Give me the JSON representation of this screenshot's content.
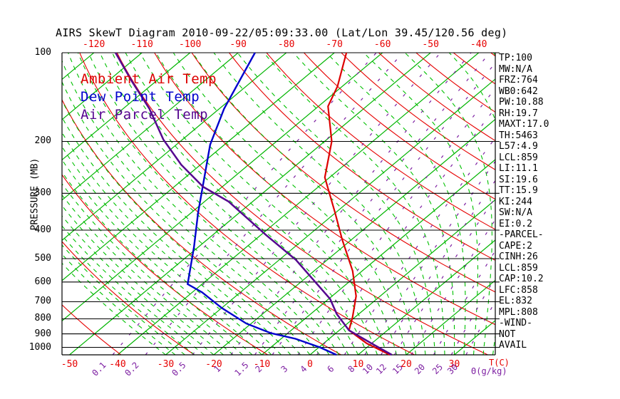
{
  "title": "AIRS SkewT Diagram 2010-09-22/05:09:33.00 (Lat/Lon 39.45/120.56 deg)",
  "colors": {
    "isotherm_green": "#00b400",
    "dry_adiabat_red": "#e60000",
    "moist_adiabat_green": "#00c000",
    "mixing_ratio_purple": "#7d1fa2",
    "axis_black": "#000000",
    "temp_curve_red": "#dd0000",
    "dewpoint_curve_blue": "#0000cc",
    "parcel_curve_purple": "#55068f",
    "tick_label_red": "#e60000"
  },
  "legend": {
    "items": [
      {
        "label": "Ambient Air Temp",
        "color": "#dd0000"
      },
      {
        "label": "Dew Point Temp",
        "color": "#0000cc"
      },
      {
        "label": "Air Parcel Temp",
        "color": "#55068f"
      }
    ]
  },
  "axes": {
    "pressure": {
      "label": "PRESSURE (MB)",
      "unit": "MB",
      "scale": "log",
      "ticks": [
        100,
        200,
        300,
        400,
        500,
        600,
        700,
        800,
        900,
        1000
      ]
    },
    "temp_ticks_top": [
      -120,
      -110,
      -100,
      -90,
      -80,
      -70,
      -60,
      -50,
      -40
    ],
    "temp_ticks_bottom": [
      -50,
      -40,
      -30,
      -20,
      -10,
      0,
      10,
      20,
      30
    ],
    "temp_unit": "T(C)",
    "mixing_ratio_ticks": [
      0.1,
      0.2,
      0.5,
      1,
      1.5,
      2,
      3,
      4,
      6,
      8,
      10,
      12,
      15,
      20,
      25,
      30
    ],
    "mixing_unit": "Θ(g/kg)"
  },
  "side_panel": {
    "lines": [
      "TP:100",
      "MW:N/A",
      "FRZ:764",
      "WB0:642",
      "PW:10.88",
      "RH:19.7",
      "MAXT:17.0",
      "TH:5463",
      "L57:4.9",
      "LCL:859",
      "LI:11.1",
      "SI:19.6",
      "TT:15.9",
      "KI:244",
      "SW:N/A",
      "EI:0.2",
      "-PARCEL-",
      "CAPE:2",
      "CINH:26",
      "LCL:859",
      "CAP:10.2",
      "LFC:858",
      "EL:832",
      "MPL:808",
      "-WIND-",
      "NOT",
      "AVAIL"
    ]
  },
  "chart_data": {
    "type": "line",
    "title": "AIRS SkewT Diagram 2010-09-22/05:09:33.00 (Lat/Lon 39.45/120.56 deg)",
    "x_axis": {
      "label": "T(C)",
      "skewed": true,
      "ticks_top": [
        -120,
        -110,
        -100,
        -90,
        -80,
        -70,
        -60,
        -50,
        -40
      ],
      "ticks_bottom": [
        -50,
        -40,
        -30,
        -20,
        -10,
        0,
        10,
        20,
        30
      ]
    },
    "y_axis": {
      "label": "PRESSURE (MB)",
      "scale": "log",
      "range": [
        100,
        1060
      ],
      "ticks": [
        100,
        200,
        300,
        400,
        500,
        600,
        700,
        800,
        900,
        1000
      ]
    },
    "background": {
      "isotherms_C": {
        "from": -130,
        "to": 40,
        "step": 10
      },
      "dry_adiabats_theta_K": {
        "from": 230,
        "to": 470,
        "step": 15
      },
      "moist_adiabats_startC": {
        "from": -30,
        "to": 40,
        "step": 2
      },
      "mixing_ratio_lines_gkg": [
        0.1,
        0.2,
        0.5,
        1,
        1.5,
        2,
        3,
        4,
        6,
        8,
        10,
        12,
        15,
        20,
        25,
        30
      ]
    },
    "series": [
      {
        "name": "Ambient Air Temp",
        "color": "#dd0000",
        "width": 2.2,
        "points_p_T": [
          [
            100,
            -67.5
          ],
          [
            130,
            -61
          ],
          [
            152,
            -58
          ],
          [
            200,
            -48.5
          ],
          [
            265,
            -41
          ],
          [
            350,
            -30
          ],
          [
            430,
            -22
          ],
          [
            550,
            -12
          ],
          [
            670,
            -5
          ],
          [
            790,
            -0.5
          ],
          [
            875,
            2
          ],
          [
            970,
            9
          ],
          [
            1060,
            16.6
          ]
        ]
      },
      {
        "name": "Dew Point Temp",
        "color": "#0000cc",
        "width": 2.4,
        "points_p_T": [
          [
            100,
            -86.5
          ],
          [
            155,
            -79
          ],
          [
            205,
            -73
          ],
          [
            350,
            -58.5
          ],
          [
            455,
            -51
          ],
          [
            610,
            -43
          ],
          [
            650,
            -38
          ],
          [
            735,
            -30
          ],
          [
            830,
            -21
          ],
          [
            895,
            -13.5
          ],
          [
            935,
            -7
          ],
          [
            1000,
            0.2
          ],
          [
            1060,
            5.5
          ]
        ]
      },
      {
        "name": "Air Parcel Temp",
        "color": "#55068f",
        "width": 2.5,
        "points_p_T": [
          [
            100,
            -115.5
          ],
          [
            125,
            -105
          ],
          [
            155,
            -94.5
          ],
          [
            197,
            -84
          ],
          [
            240,
            -74
          ],
          [
            285,
            -64
          ],
          [
            320,
            -55
          ],
          [
            415,
            -39
          ],
          [
            505,
            -26.5
          ],
          [
            685,
            -9.7
          ],
          [
            770,
            -4.6
          ],
          [
            875,
            2
          ],
          [
            970,
            10
          ],
          [
            1060,
            17
          ]
        ]
      }
    ],
    "legend_position": "upper-left-inside",
    "grid": "skew-t log-p background (isotherms, dry/moist adiabats, mixing-ratio lines)"
  }
}
